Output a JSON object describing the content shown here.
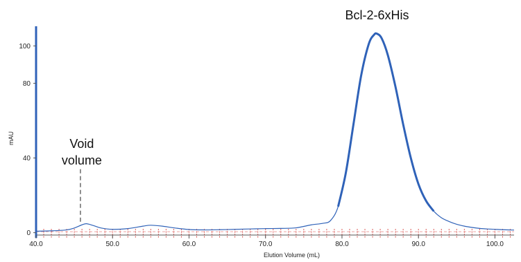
{
  "chart_data": {
    "type": "line",
    "title": "",
    "xlabel": "Elution Volume (mL)",
    "ylabel": "mAU",
    "xlim": [
      40.0,
      102.5
    ],
    "ylim": [
      -2,
      112
    ],
    "x_ticks": [
      "40.0",
      "50.0",
      "60.0",
      "70.0",
      "80.0",
      "90.0",
      "100.0"
    ],
    "y_ticks": [
      "0",
      "40",
      "80",
      "100"
    ],
    "grid": false,
    "legend": "none",
    "series": [
      {
        "color": "#2f62b8",
        "x": [
          40.0,
          42.0,
          44.0,
          45.0,
          46.0,
          46.6,
          47.5,
          48.5,
          50.0,
          52.0,
          54.0,
          55.0,
          56.5,
          58.0,
          60.0,
          62.0,
          64.0,
          66.0,
          68.0,
          70.0,
          72.0,
          74.0,
          76.0,
          77.5,
          78.5,
          79.5,
          80.5,
          81.5,
          82.5,
          83.5,
          84.2,
          84.6,
          85.2,
          86.0,
          87.0,
          88.0,
          89.0,
          90.0,
          91.0,
          92.0,
          93.0,
          94.0,
          95.0,
          96.0,
          97.0,
          98.0,
          99.0,
          100.0,
          101.0,
          102.5
        ],
        "y": [
          0.8,
          1.0,
          1.5,
          2.5,
          4.2,
          4.8,
          3.8,
          2.5,
          1.8,
          2.2,
          3.5,
          4.0,
          3.5,
          2.6,
          1.7,
          1.5,
          1.6,
          1.8,
          2.0,
          2.2,
          2.3,
          2.6,
          4.2,
          5.0,
          6.5,
          14.0,
          32.0,
          58.0,
          84.0,
          101.0,
          106.0,
          106.5,
          104.0,
          95.0,
          78.0,
          58.0,
          40.0,
          26.0,
          17.0,
          11.5,
          8.0,
          6.0,
          4.5,
          3.5,
          2.8,
          2.3,
          2.0,
          1.8,
          1.6,
          1.4
        ]
      }
    ],
    "fraction_markers": {
      "color": "#d9534f",
      "start": 40.0,
      "end": 102.5,
      "step": 1.0
    },
    "annotations": [
      {
        "text": [
          "Void",
          "volume"
        ],
        "x": 45.8,
        "line_from_y": 4.5,
        "line_to_y": 34
      },
      {
        "text": [
          "Bcl-2-6xHis"
        ],
        "x": 84.5,
        "y": 106.5
      }
    ]
  }
}
